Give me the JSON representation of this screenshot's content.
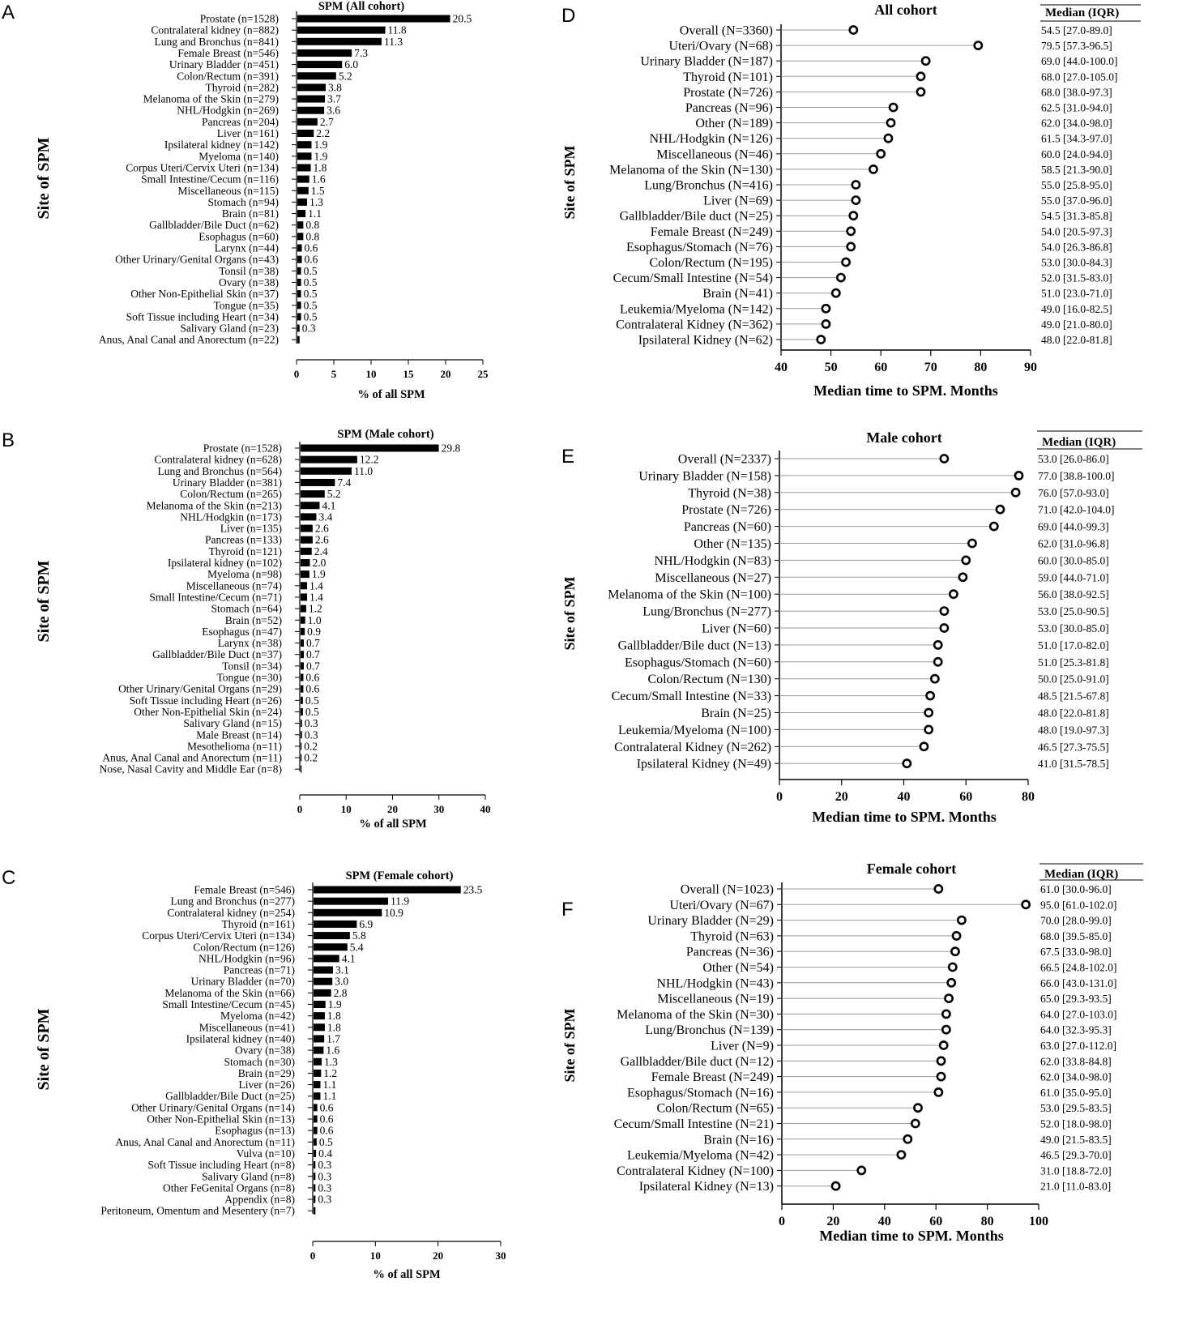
{
  "chart_data": [
    {
      "id": "A",
      "panel_label": "A",
      "type": "bar",
      "orientation": "horizontal",
      "title": "SPM (All cohort)",
      "xlabel": "% of all SPM",
      "ylabel": "Site of SPM",
      "xlim": [
        0,
        25
      ],
      "xticks": [
        0,
        5,
        10,
        15,
        20,
        25
      ],
      "categories": [
        "Prostate (n=1528)",
        "Contralateral kidney (n=882)",
        "Lung and Bronchus (n=841)",
        "Female Breast (n=546)",
        "Urinary Bladder (n=451)",
        "Colon/Rectum (n=391)",
        "Thyroid (n=282)",
        "Melanoma of the Skin (n=279)",
        "NHL/Hodgkin (n=269)",
        "Pancreas (n=204)",
        "Liver (n=161)",
        "Ipsilateral kidney (n=142)",
        "Myeloma (n=140)",
        "Corpus Uteri/Cervix Uteri (n=134)",
        "Small Intestine/Cecum (n=116)",
        "Miscellaneous (n=115)",
        "Stomach (n=94)",
        "Brain (n=81)",
        "Gallbladder/Bile Duct (n=62)",
        "Esophagus (n=60)",
        "Larynx (n=44)",
        "Other Urinary/Genital Organs (n=43)",
        "Tonsil (n=38)",
        "Ovary (n=38)",
        "Other Non-Epithelial Skin (n=37)",
        "Tongue (n=35)",
        "Soft Tissue including Heart (n=34)",
        "Salivary Gland (n=23)",
        "Anus, Anal Canal and Anorectum (n=22)"
      ],
      "values": [
        20.5,
        11.8,
        11.3,
        7.3,
        6.0,
        5.2,
        3.8,
        3.7,
        3.6,
        2.7,
        2.2,
        1.9,
        1.9,
        1.8,
        1.6,
        1.5,
        1.3,
        1.1,
        0.8,
        0.8,
        0.6,
        0.6,
        0.5,
        0.5,
        0.5,
        0.5,
        0.5,
        0.3,
        0.3
      ],
      "value_labels": [
        "20.5",
        "11.8",
        "11.3",
        "7.3",
        "6.0",
        "5.2",
        "3.8",
        "3.7",
        "3.6",
        "2.7",
        "2.2",
        "1.9",
        "1.9",
        "1.8",
        "1.6",
        "1.5",
        "1.3",
        "1.1",
        "0.8",
        "0.8",
        "0.6",
        "0.6",
        "0.5",
        "0.5",
        "0.5",
        "0.5",
        "0.5",
        "0.3",
        ""
      ]
    },
    {
      "id": "B",
      "panel_label": "B",
      "type": "bar",
      "orientation": "horizontal",
      "title": "SPM (Male cohort)",
      "xlabel": "% of all SPM",
      "ylabel": "Site of SPM",
      "xlim": [
        0,
        40
      ],
      "xticks": [
        0,
        10,
        20,
        30,
        40
      ],
      "categories": [
        "Prostate (n=1528)",
        "Contralateral kidney (n=628)",
        "Lung and Bronchus (n=564)",
        "Urinary Bladder (n=381)",
        "Colon/Rectum (n=265)",
        "Melanoma of the Skin (n=213)",
        "NHL/Hodgkin (n=173)",
        "Liver (n=135)",
        "Pancreas (n=133)",
        "Thyroid (n=121)",
        "Ipsilateral kidney (n=102)",
        "Myeloma (n=98)",
        "Miscellaneous (n=74)",
        "Small Intestine/Cecum (n=71)",
        "Stomach (n=64)",
        "Brain (n=52)",
        "Esophagus (n=47)",
        "Larynx (n=38)",
        "Gallbladder/Bile Duct (n=37)",
        "Tonsil (n=34)",
        "Tongue (n=30)",
        "Other Urinary/Genital Organs (n=29)",
        "Soft Tissue including Heart (n=26)",
        "Other Non-Epithelial Skin (n=24)",
        "Salivary Gland (n=15)",
        "Male Breast (n=14)",
        "Mesothelioma (n=11)",
        "Anus, Anal Canal and Anorectum (n=11)",
        "Nose, Nasal Cavity and Middle Ear (n=8)"
      ],
      "values": [
        29.8,
        12.2,
        11.0,
        7.4,
        5.2,
        4.1,
        3.4,
        2.6,
        2.6,
        2.4,
        2.0,
        1.9,
        1.4,
        1.4,
        1.2,
        1.0,
        0.9,
        0.7,
        0.7,
        0.7,
        0.6,
        0.6,
        0.5,
        0.5,
        0.3,
        0.3,
        0.2,
        0.2,
        0.2
      ],
      "value_labels": [
        "29.8",
        "12.2",
        "11.0",
        "7.4",
        "5.2",
        "4.1",
        "3.4",
        "2.6",
        "2.6",
        "2.4",
        "2.0",
        "1.9",
        "1.4",
        "1.4",
        "1.2",
        "1.0",
        "0.9",
        "0.7",
        "0.7",
        "0.7",
        "0.6",
        "0.6",
        "0.5",
        "0.5",
        "0.3",
        "0.3",
        "0.2",
        "0.2",
        ""
      ]
    },
    {
      "id": "C",
      "panel_label": "C",
      "type": "bar",
      "orientation": "horizontal",
      "title": "SPM (Female cohort)",
      "xlabel": "% of all SPM",
      "ylabel": "Site of SPM",
      "xlim": [
        0,
        30
      ],
      "xticks": [
        0,
        10,
        20,
        30
      ],
      "categories": [
        "Female Breast (n=546)",
        "Lung and Bronchus (n=277)",
        "Contralateral kidney (n=254)",
        "Thyroid (n=161)",
        "Corpus Uteri/Cervix Uteri (n=134)",
        "Colon/Rectum (n=126)",
        "NHL/Hodgkin (n=96)",
        "Pancreas (n=71)",
        "Urinary Bladder (n=70)",
        "Melanoma of the Skin (n=66)",
        "Small Intestine/Cecum (n=45)",
        "Myeloma (n=42)",
        "Miscellaneous (n=41)",
        "Ipsilateral kidney (n=40)",
        "Ovary (n=38)",
        "Stomach (n=30)",
        "Brain (n=29)",
        "Liver (n=26)",
        "Gallbladder/Bile Duct (n=25)",
        "Other Urinary/Genital Organs (n=14)",
        "Other Non-Epithelial Skin (n=13)",
        "Esophagus (n=13)",
        "Anus, Anal Canal and Anorectum (n=11)",
        "Vulva (n=10)",
        "Soft Tissue including Heart (n=8)",
        "Salivary Gland (n=8)",
        "Other FeGenital Organs (n=8)",
        "Appendix (n=8)",
        "Peritoneum, Omentum and Mesentery (n=7)"
      ],
      "values": [
        23.5,
        11.9,
        10.9,
        6.9,
        5.8,
        5.4,
        4.1,
        3.1,
        3.0,
        2.8,
        1.9,
        1.8,
        1.8,
        1.7,
        1.6,
        1.3,
        1.2,
        1.1,
        1.1,
        0.6,
        0.6,
        0.6,
        0.5,
        0.4,
        0.3,
        0.3,
        0.3,
        0.3,
        0.3
      ],
      "value_labels": [
        "23.5",
        "11.9",
        "10.9",
        "6.9",
        "5.8",
        "5.4",
        "4.1",
        "3.1",
        "3.0",
        "2.8",
        "1.9",
        "1.8",
        "1.8",
        "1.7",
        "1.6",
        "1.3",
        "1.2",
        "1.1",
        "1.1",
        "0.6",
        "0.6",
        "0.6",
        "0.5",
        "0.4",
        "0.3",
        "0.3",
        "0.3",
        "0.3",
        ""
      ]
    },
    {
      "id": "D",
      "panel_label": "D",
      "type": "scatter",
      "style": "lollipop",
      "title": "All cohort",
      "xlabel": "Median time to SPM. Months",
      "ylabel": "Site of SPM",
      "xlim": [
        40,
        90
      ],
      "xticks": [
        40,
        50,
        60,
        70,
        80,
        90
      ],
      "table_header": "Median (IQR)",
      "categories": [
        "Overall (N=3360)",
        "Uteri/Ovary (N=68)",
        "Urinary Bladder (N=187)",
        "Thyroid (N=101)",
        "Prostate (N=726)",
        "Pancreas (N=96)",
        "Other (N=189)",
        "NHL/Hodgkin (N=126)",
        "Miscellaneous (N=46)",
        "Melanoma of the Skin (N=130)",
        "Lung/Bronchus (N=416)",
        "Liver (N=69)",
        "Gallbladder/Bile duct (N=25)",
        "Female Breast (N=249)",
        "Esophagus/Stomach (N=76)",
        "Colon/Rectum (N=195)",
        "Cecum/Small Intestine (N=54)",
        "Brain (N=41)",
        "Leukemia/Myeloma (N=142)",
        "Contralateral Kidney (N=362)",
        "Ipsilateral Kidney (N=62)"
      ],
      "values": [
        54.5,
        79.5,
        69.0,
        68.0,
        68.0,
        62.5,
        62.0,
        61.5,
        60.0,
        58.5,
        55.0,
        55.0,
        54.5,
        54.0,
        54.0,
        53.0,
        52.0,
        51.0,
        49.0,
        49.0,
        48.0
      ],
      "iqr": [
        "54.5 [27.0-89.0]",
        "79.5 [57.3-96.5]",
        "69.0 [44.0-100.0]",
        "68.0 [27.0-105.0]",
        "68.0 [38.0-97.3]",
        "62.5 [31.0-94.0]",
        "62.0 [34.0-98.0]",
        "61.5 [34.3-97.0]",
        "60.0 [24.0-94.0]",
        "58.5 [21.3-90.0]",
        "55.0 [25.8-95.0]",
        "55.0 [37.0-96.0]",
        "54.5 [31.3-85.8]",
        "54.0 [20.5-97.3]",
        "54.0 [26.3-86.8]",
        "53.0 [30.0-84.3]",
        "52.0 [31.5-83.0]",
        "51.0 [23.0-71.0]",
        "49.0 [16.0-82.5]",
        "49.0 [21.0-80.0]",
        "48.0 [22.0-81.8]"
      ]
    },
    {
      "id": "E",
      "panel_label": "E",
      "type": "scatter",
      "style": "lollipop",
      "title": "Male cohort",
      "xlabel": "Median time to SPM. Months",
      "ylabel": "Site of SPM",
      "xlim": [
        0,
        80
      ],
      "xticks": [
        0,
        20,
        40,
        60,
        80
      ],
      "table_header": "Median (IQR)",
      "categories": [
        "Overall (N=2337)",
        "Urinary Bladder (N=158)",
        "Thyroid (N=38)",
        "Prostate (N=726)",
        "Pancreas (N=60)",
        "Other (N=135)",
        "NHL/Hodgkin (N=83)",
        "Miscellaneous (N=27)",
        "Melanoma of the Skin (N=100)",
        "Lung/Bronchus (N=277)",
        "Liver (N=60)",
        "Gallbladder/Bile duct (N=13)",
        "Esophagus/Stomach (N=60)",
        "Colon/Rectum (N=130)",
        "Cecum/Small Intestine (N=33)",
        "Brain (N=25)",
        "Leukemia/Myeloma (N=100)",
        "Contralateral Kidney (N=262)",
        "Ipsilateral Kidney (N=49)"
      ],
      "values": [
        53.0,
        77.0,
        76.0,
        71.0,
        69.0,
        62.0,
        60.0,
        59.0,
        56.0,
        53.0,
        53.0,
        51.0,
        51.0,
        50.0,
        48.5,
        48.0,
        48.0,
        46.5,
        41.0
      ],
      "iqr": [
        "53.0 [26.0-86.0]",
        "77.0 [38.8-100.0]",
        "76.0 [57.0-93.0]",
        "71.0 [42.0-104.0]",
        "69.0 [44.0-99.3]",
        "62.0 [31.0-96.8]",
        "60.0 [30.0-85.0]",
        "59.0 [44.0-71.0]",
        "56.0 [38.0-92.5]",
        "53.0 [25.0-90.5]",
        "53.0 [30.0-85.0]",
        "51.0 [17.0-82.0]",
        "51.0 [25.3-81.8]",
        "50.0 [25.0-91.0]",
        "48.5 [21.5-67.8]",
        "48.0 [22.0-81.8]",
        "48.0 [19.0-97.3]",
        "46.5 [27.3-75.5]",
        "41.0 [31.5-78.5]"
      ]
    },
    {
      "id": "F",
      "panel_label": "F",
      "type": "scatter",
      "style": "lollipop",
      "title": "Female cohort",
      "xlabel": "Median time to SPM. Months",
      "ylabel": "Site of SPM",
      "xlim": [
        0,
        100
      ],
      "xticks": [
        0,
        20,
        40,
        60,
        80,
        100
      ],
      "table_header": "Median (IQR)",
      "categories": [
        "Overall (N=1023)",
        "Uteri/Ovary (N=67)",
        "Urinary Bladder (N=29)",
        "Thyroid (N=63)",
        "Pancreas (N=36)",
        "Other (N=54)",
        "NHL/Hodgkin (N=43)",
        "Miscellaneous (N=19)",
        "Melanoma of the Skin (N=30)",
        "Lung/Bronchus (N=139)",
        "Liver (N=9)",
        "Gallbladder/Bile duct (N=12)",
        "Female Breast (N=249)",
        "Esophagus/Stomach (N=16)",
        "Colon/Rectum (N=65)",
        "Cecum/Small Intestine (N=21)",
        "Brain (N=16)",
        "Leukemia/Myeloma (N=42)",
        "Contralateral Kidney (N=100)",
        "Ipsilateral Kidney (N=13)"
      ],
      "values": [
        61.0,
        95.0,
        70.0,
        68.0,
        67.5,
        66.5,
        66.0,
        65.0,
        64.0,
        64.0,
        63.0,
        62.0,
        62.0,
        61.0,
        53.0,
        52.0,
        49.0,
        46.5,
        31.0,
        21.0
      ],
      "iqr": [
        "61.0 [30.0-96.0]",
        "95.0 [61.0-102.0]",
        "70.0 [28.0-99.0]",
        "68.0 [39.5-85.0]",
        "67.5 [33.0-98.0]",
        "66.5 [24.8-102.0]",
        "66.0 [43.0-131.0]",
        "65.0 [29.3-93.5]",
        "64.0 [27.0-103.0]",
        "64.0 [32.3-95.3]",
        "63.0 [27.0-112.0]",
        "62.0 [33.8-84.8]",
        "62.0 [34.0-98.0]",
        "61.0 [35.0-95.0]",
        "53.0 [29.5-83.5]",
        "52.0 [18.0-98.0]",
        "49.0 [21.5-83.5]",
        "46.5 [29.3-70.0]",
        "31.0 [18.8-72.0]",
        "21.0 [11.0-83.0]"
      ]
    }
  ]
}
